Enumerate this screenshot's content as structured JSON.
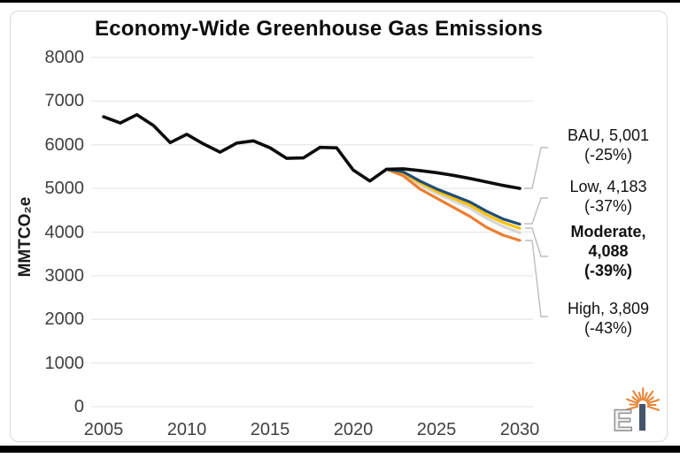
{
  "frame_color": "#000000",
  "chart_data": {
    "type": "line",
    "title": "Economy-Wide Greenhouse Gas Emissions",
    "ylabel": "MMTCO₂e",
    "xlabel": "",
    "xlim": [
      2005,
      2030
    ],
    "ylim": [
      0,
      8000
    ],
    "x_ticks": [
      2005,
      2010,
      2015,
      2020,
      2025,
      2030
    ],
    "y_ticks": [
      0,
      1000,
      2000,
      3000,
      4000,
      5000,
      6000,
      7000,
      8000
    ],
    "grid": "horizontal-only",
    "gridline_color": "#e8e8e8",
    "axis_text_color": "#404040",
    "series": [
      {
        "id": "bau",
        "name": "BAU",
        "color": "#0d0d0d",
        "width": 3.6,
        "start_year": 2005,
        "values": [
          6640,
          6500,
          6690,
          6440,
          6050,
          6240,
          6020,
          5830,
          6040,
          6090,
          5930,
          5690,
          5700,
          5940,
          5930,
          5420,
          5170,
          5440,
          5450,
          5410,
          5360,
          5300,
          5230,
          5150,
          5070,
          5001
        ]
      },
      {
        "id": "low",
        "name": "Low",
        "color": "#1f4e79",
        "width": 3.2,
        "start_year": 2022,
        "values": [
          5440,
          5380,
          5170,
          4990,
          4840,
          4690,
          4480,
          4300,
          4183
        ]
      },
      {
        "id": "moderate",
        "name": "Moderate",
        "color": "#ffc000",
        "width": 3.2,
        "start_year": 2022,
        "values": [
          5440,
          5360,
          5130,
          4940,
          4780,
          4620,
          4400,
          4220,
          4088
        ]
      },
      {
        "id": "gray_band",
        "name": "(unlabeled gray line)",
        "color": "#d6d6d6",
        "width": 3.4,
        "start_year": 2022,
        "values": [
          5440,
          5340,
          5090,
          4890,
          4720,
          4550,
          4320,
          4130,
          3985
        ]
      },
      {
        "id": "high",
        "name": "High",
        "color": "#ed7d31",
        "width": 3.2,
        "start_year": 2022,
        "values": [
          5440,
          5290,
          4990,
          4780,
          4570,
          4360,
          4110,
          3930,
          3809
        ]
      }
    ],
    "callouts": [
      {
        "id": "bau",
        "lines": [
          "BAU,  5,001",
          "(-25%)"
        ],
        "bold": false,
        "value": 5001,
        "pct": "-25%"
      },
      {
        "id": "low",
        "lines": [
          "Low,  4,183",
          "(-37%)"
        ],
        "bold": false,
        "value": 4183,
        "pct": "-37%"
      },
      {
        "id": "moderate",
        "lines": [
          "Moderate,",
          "4,088",
          "(-39%)"
        ],
        "bold": true,
        "value": 4088,
        "pct": "-39%"
      },
      {
        "id": "high",
        "lines": [
          "High,  3,809",
          "(-43%)"
        ],
        "bold": false,
        "value": 3809,
        "pct": "-43%"
      }
    ],
    "leader_line_color": "#bdbdbd"
  },
  "logo": {
    "letter_e": "E",
    "letter_i_color": "#44546a",
    "ray_color": "#e58638",
    "e_outline_color": "#8f8f8f",
    "e_fill_color": "#efefef"
  }
}
